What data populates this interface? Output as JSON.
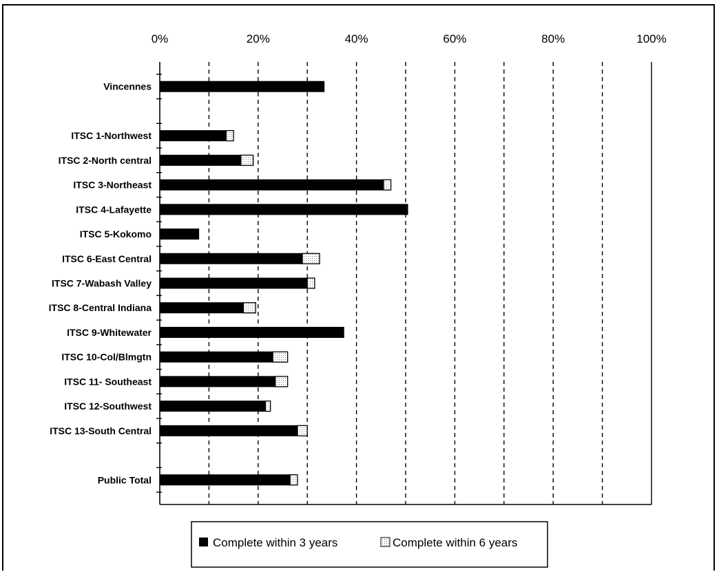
{
  "chart_data": {
    "type": "bar",
    "orientation": "horizontal",
    "stacked": true,
    "xlim": [
      0,
      100
    ],
    "x_ticks": [
      "0%",
      "20%",
      "40%",
      "60%",
      "80%",
      "100%"
    ],
    "x_axis_position": "top",
    "grid": "vertical dashed every 10%",
    "categories": [
      "Vincennes",
      "",
      "ITSC 1-Northwest",
      "ITSC 2-North central",
      "ITSC 3-Northeast",
      "ITSC 4-Lafayette",
      "ITSC 5-Kokomo",
      "ITSC 6-East Central",
      "ITSC 7-Wabash Valley",
      "ITSC 8-Central Indiana",
      "ITSC 9-Whitewater",
      "ITSC 10-Col/Blmgtn",
      "ITSC 11- Southeast",
      "ITSC 12-Southwest",
      "ITSC 13-South Central",
      "",
      "Public Total"
    ],
    "series": [
      {
        "name": "Complete within 3 years",
        "color": "#000000",
        "values": [
          33.5,
          null,
          13.5,
          16.5,
          45.5,
          50.5,
          8,
          29,
          30,
          17,
          37.5,
          23,
          23.5,
          21.5,
          28,
          null,
          26.5
        ]
      },
      {
        "name": "Complete within 6 years",
        "color": "#ffffff",
        "values": [
          0,
          null,
          1.5,
          2.5,
          1.5,
          0,
          0,
          3.5,
          1.5,
          2.5,
          0,
          3,
          2.5,
          1,
          2,
          null,
          1.5
        ]
      }
    ],
    "legend_position": "bottom"
  }
}
